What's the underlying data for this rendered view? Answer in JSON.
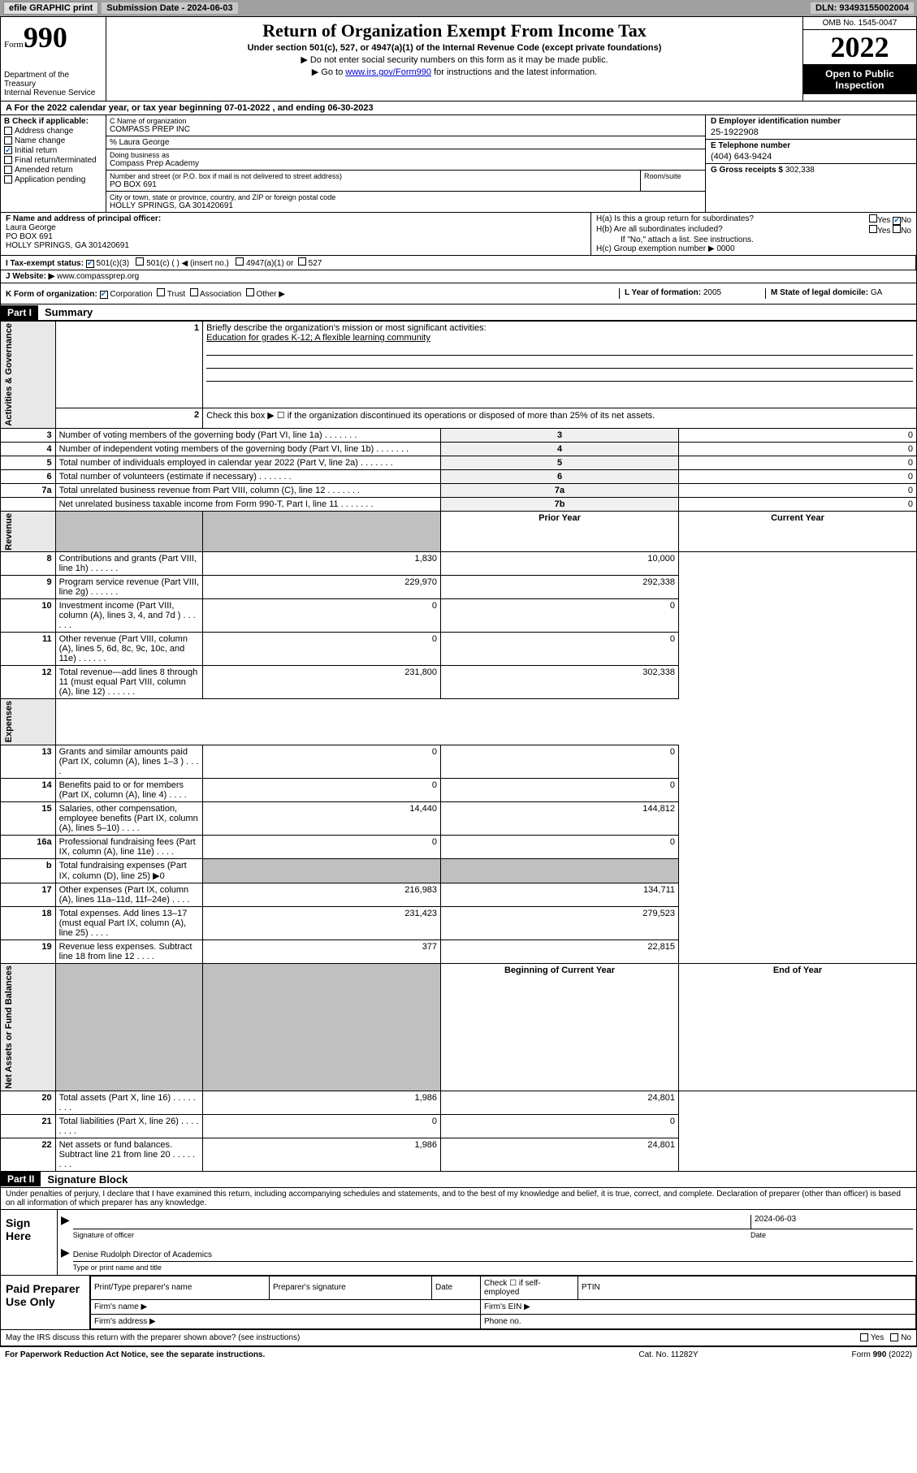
{
  "topbar": {
    "efile": "efile GRAPHIC print",
    "submission": "Submission Date - 2024-06-03",
    "dln": "DLN: 93493155002004"
  },
  "header": {
    "form_prefix": "Form",
    "form_num": "990",
    "dept": "Department of the Treasury\nInternal Revenue Service",
    "title": "Return of Organization Exempt From Income Tax",
    "sub1": "Under section 501(c), 527, or 4947(a)(1) of the Internal Revenue Code (except private foundations)",
    "sub2": "▶ Do not enter social security numbers on this form as it may be made public.",
    "sub3_pre": "▶ Go to ",
    "sub3_link": "www.irs.gov/Form990",
    "sub3_post": " for instructions and the latest information.",
    "omb": "OMB No. 1545-0047",
    "year": "2022",
    "open": "Open to Public Inspection"
  },
  "row_a": "A For the 2022 calendar year, or tax year beginning 07-01-2022  , and ending 06-30-2023",
  "section_b": {
    "label": "B Check if applicable:",
    "items": [
      "Address change",
      "Name change",
      "Initial return",
      "Final return/terminated",
      "Amended return",
      "Application pending"
    ],
    "checked_idx": 2
  },
  "section_c": {
    "name_lbl": "C Name of organization",
    "name": "COMPASS PREP INC",
    "care_of": "% Laura George",
    "dba_lbl": "Doing business as",
    "dba": "Compass Prep Academy",
    "addr_lbl": "Number and street (or P.O. box if mail is not delivered to street address)",
    "addr": "PO BOX 691",
    "room_lbl": "Room/suite",
    "city_lbl": "City or town, state or province, country, and ZIP or foreign postal code",
    "city": "HOLLY SPRINGS, GA  301420691"
  },
  "section_d": {
    "ein_lbl": "D Employer identification number",
    "ein": "25-1922908",
    "tel_lbl": "E Telephone number",
    "tel": "(404) 643-9424",
    "gross_lbl": "G Gross receipts $",
    "gross": "302,338"
  },
  "section_f": {
    "lbl": "F  Name and address of principal officer:",
    "name": "Laura George",
    "addr1": "PO BOX 691",
    "addr2": "HOLLY SPRINGS, GA  301420691"
  },
  "section_h": {
    "ha": "H(a)  Is this a group return for subordinates?",
    "hb": "H(b)  Are all subordinates included?",
    "hb_note": "If \"No,\" attach a list. See instructions.",
    "hc": "H(c)  Group exemption number ▶",
    "hc_val": "0000"
  },
  "row_i": {
    "lbl": "I    Tax-exempt status:",
    "opts": [
      "501(c)(3)",
      "501(c) (  ) ◀ (insert no.)",
      "4947(a)(1) or",
      "527"
    ]
  },
  "row_j": {
    "lbl": "J   Website: ▶",
    "val": "www.compassprep.org"
  },
  "row_k": {
    "lbl": "K Form of organization:",
    "opts": [
      "Corporation",
      "Trust",
      "Association",
      "Other ▶"
    ],
    "l_lbl": "L Year of formation:",
    "l_val": "2005",
    "m_lbl": "M State of legal domicile:",
    "m_val": "GA"
  },
  "part1": {
    "hdr": "Part I",
    "title": "Summary",
    "q1": "Briefly describe the organization's mission or most significant activities:",
    "q1_val": "Education for grades K-12; A flexible learning community",
    "q2": "Check this box ▶ ☐  if the organization discontinued its operations or disposed of more than 25% of its net assets.",
    "sides": [
      "Activities & Governance",
      "Revenue",
      "Expenses",
      "Net Assets or Fund Balances"
    ],
    "rows_gov": [
      {
        "n": "3",
        "t": "Number of voting members of the governing body (Part VI, line 1a)",
        "c": "3",
        "v": "0"
      },
      {
        "n": "4",
        "t": "Number of independent voting members of the governing body (Part VI, line 1b)",
        "c": "4",
        "v": "0"
      },
      {
        "n": "5",
        "t": "Total number of individuals employed in calendar year 2022 (Part V, line 2a)",
        "c": "5",
        "v": "0"
      },
      {
        "n": "6",
        "t": "Total number of volunteers (estimate if necessary)",
        "c": "6",
        "v": "0"
      },
      {
        "n": "7a",
        "t": "Total unrelated business revenue from Part VIII, column (C), line 12",
        "c": "7a",
        "v": "0"
      },
      {
        "n": "",
        "t": "Net unrelated business taxable income from Form 990-T, Part I, line 11",
        "c": "7b",
        "v": "0"
      }
    ],
    "col_hdrs": [
      "Prior Year",
      "Current Year"
    ],
    "rows_rev": [
      {
        "n": "8",
        "t": "Contributions and grants (Part VIII, line 1h)",
        "p": "1,830",
        "c": "10,000"
      },
      {
        "n": "9",
        "t": "Program service revenue (Part VIII, line 2g)",
        "p": "229,970",
        "c": "292,338"
      },
      {
        "n": "10",
        "t": "Investment income (Part VIII, column (A), lines 3, 4, and 7d )",
        "p": "0",
        "c": "0"
      },
      {
        "n": "11",
        "t": "Other revenue (Part VIII, column (A), lines 5, 6d, 8c, 9c, 10c, and 11e)",
        "p": "0",
        "c": "0"
      },
      {
        "n": "12",
        "t": "Total revenue—add lines 8 through 11 (must equal Part VIII, column (A), line 12)",
        "p": "231,800",
        "c": "302,338"
      }
    ],
    "rows_exp": [
      {
        "n": "13",
        "t": "Grants and similar amounts paid (Part IX, column (A), lines 1–3 )",
        "p": "0",
        "c": "0"
      },
      {
        "n": "14",
        "t": "Benefits paid to or for members (Part IX, column (A), line 4)",
        "p": "0",
        "c": "0"
      },
      {
        "n": "15",
        "t": "Salaries, other compensation, employee benefits (Part IX, column (A), lines 5–10)",
        "p": "14,440",
        "c": "144,812"
      },
      {
        "n": "16a",
        "t": "Professional fundraising fees (Part IX, column (A), line 11e)",
        "p": "0",
        "c": "0"
      },
      {
        "n": "b",
        "t": "Total fundraising expenses (Part IX, column (D), line 25) ▶0",
        "p": "",
        "c": ""
      },
      {
        "n": "17",
        "t": "Other expenses (Part IX, column (A), lines 11a–11d, 11f–24e)",
        "p": "216,983",
        "c": "134,711"
      },
      {
        "n": "18",
        "t": "Total expenses. Add lines 13–17 (must equal Part IX, column (A), line 25)",
        "p": "231,423",
        "c": "279,523"
      },
      {
        "n": "19",
        "t": "Revenue less expenses. Subtract line 18 from line 12",
        "p": "377",
        "c": "22,815"
      }
    ],
    "col_hdrs2": [
      "Beginning of Current Year",
      "End of Year"
    ],
    "rows_net": [
      {
        "n": "20",
        "t": "Total assets (Part X, line 16)",
        "p": "1,986",
        "c": "24,801"
      },
      {
        "n": "21",
        "t": "Total liabilities (Part X, line 26)",
        "p": "0",
        "c": "0"
      },
      {
        "n": "22",
        "t": "Net assets or fund balances. Subtract line 21 from line 20",
        "p": "1,986",
        "c": "24,801"
      }
    ]
  },
  "part2": {
    "hdr": "Part II",
    "title": "Signature Block",
    "decl": "Under penalties of perjury, I declare that I have examined this return, including accompanying schedules and statements, and to the best of my knowledge and belief, it is true, correct, and complete. Declaration of preparer (other than officer) is based on all information of which preparer has any knowledge.",
    "sign_here": "Sign Here",
    "sig_of_officer": "Signature of officer",
    "sig_date": "2024-06-03",
    "date_lbl": "Date",
    "officer_name": "Denise Rudolph  Director of Academics",
    "type_lbl": "Type or print name and title",
    "paid_prep": "Paid Preparer Use Only",
    "prep_hdrs": [
      "Print/Type preparer's name",
      "Preparer's signature",
      "Date"
    ],
    "check_self": "Check ☐ if self-employed",
    "ptin": "PTIN",
    "firm_name": "Firm's name  ▶",
    "firm_ein": "Firm's EIN ▶",
    "firm_addr": "Firm's address ▶",
    "phone": "Phone no.",
    "may_irs": "May the IRS discuss this return with the preparer shown above? (see instructions)"
  },
  "footer": {
    "l": "For Paperwork Reduction Act Notice, see the separate instructions.",
    "m": "Cat. No. 11282Y",
    "r": "Form 990 (2022)"
  }
}
